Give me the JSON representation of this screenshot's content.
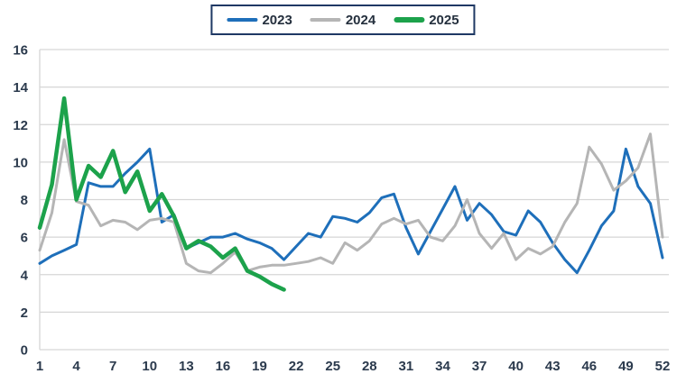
{
  "legend": {
    "items": [
      {
        "label": "2023",
        "color": "#1e6fba"
      },
      {
        "label": "2024",
        "color": "#b5b5b5"
      },
      {
        "label": "2025",
        "color": "#1ca24b"
      }
    ]
  },
  "axis_style": {
    "grid_color": "#d6d6d6",
    "label_color": "#2b3a4d",
    "background": "#ffffff"
  },
  "chart_data": {
    "type": "line",
    "title": "",
    "xlabel": "",
    "ylabel": "",
    "x_unit": "week",
    "xlim": [
      1,
      52
    ],
    "ylim": [
      0,
      16
    ],
    "ytick_step": 2,
    "ytick_labels": [
      0,
      2,
      4,
      6,
      8,
      10,
      12,
      14,
      16
    ],
    "xtick_labels": [
      1,
      4,
      7,
      10,
      13,
      16,
      19,
      22,
      25,
      28,
      31,
      34,
      37,
      40,
      43,
      46,
      49,
      52
    ],
    "grid": "horizontal",
    "legend_position": "top-center",
    "x": [
      1,
      2,
      3,
      4,
      5,
      6,
      7,
      8,
      9,
      10,
      11,
      12,
      13,
      14,
      15,
      16,
      17,
      18,
      19,
      20,
      21,
      22,
      23,
      24,
      25,
      26,
      27,
      28,
      29,
      30,
      31,
      32,
      33,
      34,
      35,
      36,
      37,
      38,
      39,
      40,
      41,
      42,
      43,
      44,
      45,
      46,
      47,
      48,
      49,
      50,
      51,
      52
    ],
    "series": [
      {
        "name": "2023",
        "color": "#1e6fba",
        "stroke_width": 3,
        "values": [
          4.6,
          5.0,
          5.3,
          5.6,
          8.9,
          8.7,
          8.7,
          9.4,
          10.0,
          10.7,
          6.8,
          7.2,
          5.4,
          5.7,
          6.0,
          6.0,
          6.2,
          5.9,
          5.7,
          5.4,
          4.8,
          5.5,
          6.2,
          6.0,
          7.1,
          7.0,
          6.8,
          7.3,
          8.1,
          8.3,
          6.5,
          5.1,
          6.3,
          7.5,
          8.7,
          6.9,
          7.8,
          7.2,
          6.3,
          6.1,
          7.4,
          6.8,
          5.7,
          4.8,
          4.1,
          5.3,
          6.6,
          7.4,
          10.7,
          8.7,
          7.8,
          4.9
        ]
      },
      {
        "name": "2024",
        "color": "#b5b5b5",
        "stroke_width": 3,
        "values": [
          5.3,
          7.3,
          11.2,
          7.9,
          7.7,
          6.6,
          6.9,
          6.8,
          6.4,
          6.9,
          7.0,
          6.8,
          4.6,
          4.2,
          4.1,
          4.6,
          5.2,
          4.2,
          4.4,
          4.5,
          4.5,
          4.6,
          4.7,
          4.9,
          4.6,
          5.7,
          5.3,
          5.8,
          6.7,
          7.0,
          6.7,
          6.9,
          6.0,
          5.8,
          6.6,
          8.0,
          6.2,
          5.4,
          6.2,
          4.8,
          5.4,
          5.1,
          5.5,
          6.8,
          7.8,
          10.8,
          9.9,
          8.5,
          9.0,
          9.7,
          11.5,
          6.0
        ]
      },
      {
        "name": "2025",
        "color": "#1ca24b",
        "stroke_width": 4.5,
        "values": [
          6.5,
          8.8,
          13.4,
          8.0,
          9.8,
          9.2,
          10.6,
          8.4,
          9.5,
          7.4,
          8.3,
          7.1,
          5.4,
          5.8,
          5.5,
          4.9,
          5.4,
          4.2,
          3.9,
          3.5,
          3.2
        ]
      }
    ]
  }
}
